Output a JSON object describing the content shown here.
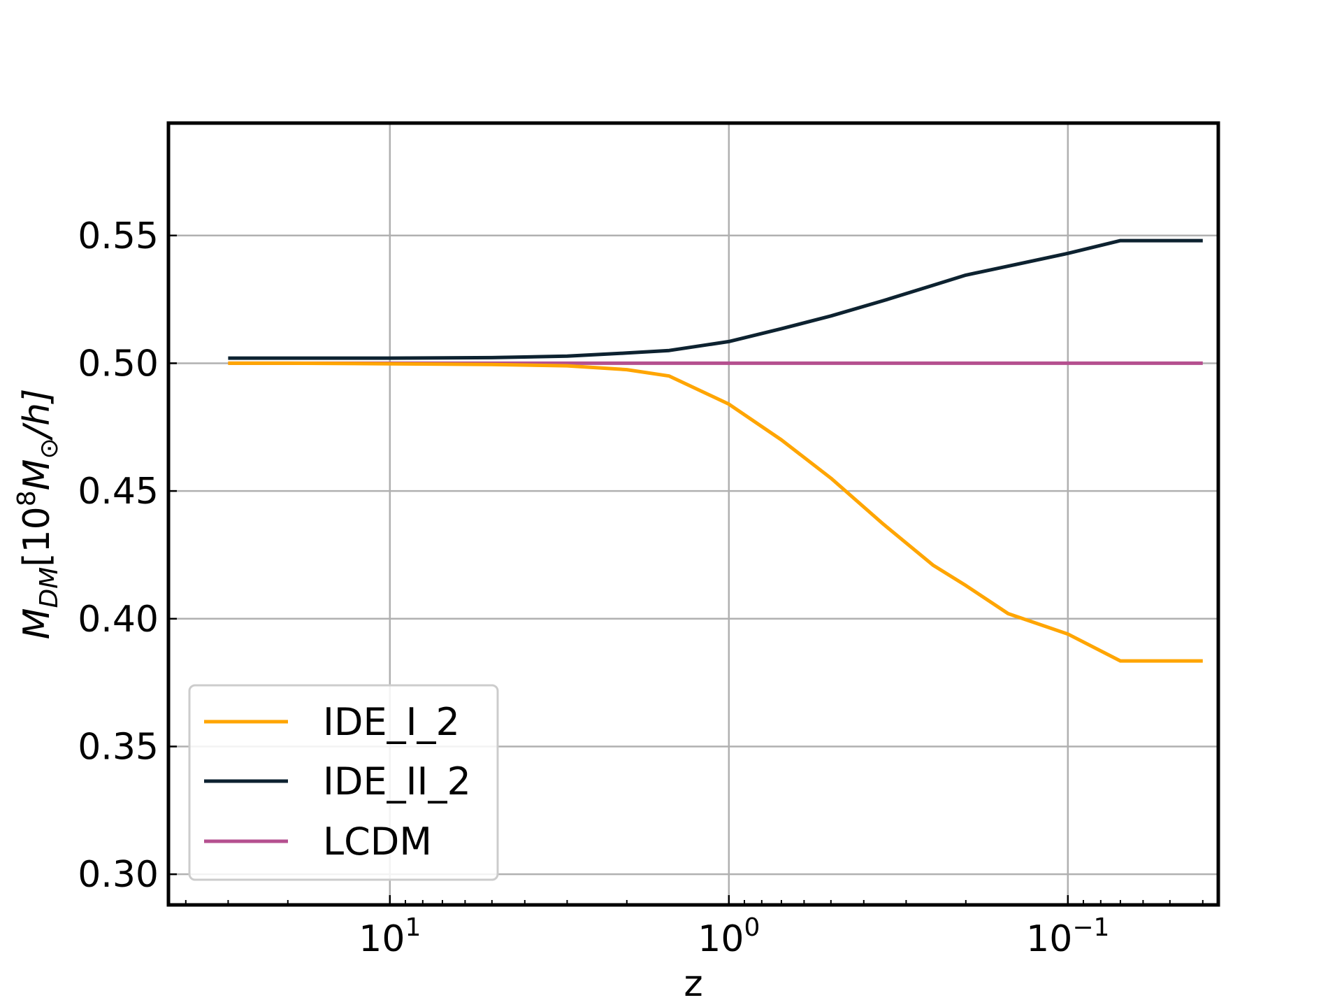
{
  "chart_data": {
    "type": "line",
    "title": "",
    "xlabel": "z",
    "ylabel": "M_DM[10^8 M_⊙/h]",
    "ylabel_parts": {
      "base": "M",
      "sub": "DM",
      "bracket_open": "[10",
      "exp": "8",
      "mass": "M",
      "mass_sub": "⊙",
      "tail": "/h]"
    },
    "x_scale": "log",
    "x_reversed": true,
    "xlim": [
      45,
      0.036
    ],
    "ylim": [
      0.288,
      0.594
    ],
    "grid": true,
    "legend_position": "lower-left",
    "x_ticks": [
      {
        "value": 10,
        "label_base": "10",
        "label_exp": "1"
      },
      {
        "value": 1,
        "label_base": "10",
        "label_exp": "0"
      },
      {
        "value": 0.1,
        "label_base": "10",
        "label_exp": "−1"
      }
    ],
    "y_ticks": [
      {
        "value": 0.3,
        "label": "0.30"
      },
      {
        "value": 0.35,
        "label": "0.35"
      },
      {
        "value": 0.4,
        "label": "0.40"
      },
      {
        "value": 0.45,
        "label": "0.45"
      },
      {
        "value": 0.5,
        "label": "0.50"
      },
      {
        "value": 0.55,
        "label": "0.55"
      }
    ],
    "series": [
      {
        "name": "IDE_I_2",
        "color": "#ffa500",
        "points": [
          [
            30,
            0.5
          ],
          [
            20,
            0.5
          ],
          [
            10,
            0.4998
          ],
          [
            5,
            0.4995
          ],
          [
            3,
            0.499
          ],
          [
            2,
            0.4975
          ],
          [
            1.5,
            0.495
          ],
          [
            1.0,
            0.484
          ],
          [
            0.7,
            0.47
          ],
          [
            0.5,
            0.455
          ],
          [
            0.35,
            0.437
          ],
          [
            0.25,
            0.421
          ],
          [
            0.2,
            0.413
          ],
          [
            0.15,
            0.402
          ],
          [
            0.1,
            0.394
          ],
          [
            0.07,
            0.3835
          ],
          [
            0.06,
            0.3835
          ],
          [
            0.04,
            0.3835
          ]
        ]
      },
      {
        "name": "IDE_II_2",
        "color": "#0d2230",
        "points": [
          [
            30,
            0.502
          ],
          [
            20,
            0.502
          ],
          [
            10,
            0.502
          ],
          [
            5,
            0.5022
          ],
          [
            3,
            0.5028
          ],
          [
            2,
            0.504
          ],
          [
            1.5,
            0.505
          ],
          [
            1.0,
            0.5085
          ],
          [
            0.7,
            0.5135
          ],
          [
            0.5,
            0.5185
          ],
          [
            0.35,
            0.5245
          ],
          [
            0.25,
            0.5305
          ],
          [
            0.2,
            0.5345
          ],
          [
            0.15,
            0.538
          ],
          [
            0.1,
            0.543
          ],
          [
            0.07,
            0.548
          ],
          [
            0.06,
            0.548
          ],
          [
            0.04,
            0.548
          ]
        ]
      },
      {
        "name": "LCDM",
        "color": "#b5508f",
        "points": [
          [
            30,
            0.5
          ],
          [
            10,
            0.5
          ],
          [
            1.0,
            0.5
          ],
          [
            0.1,
            0.5
          ],
          [
            0.04,
            0.5
          ]
        ]
      }
    ]
  }
}
